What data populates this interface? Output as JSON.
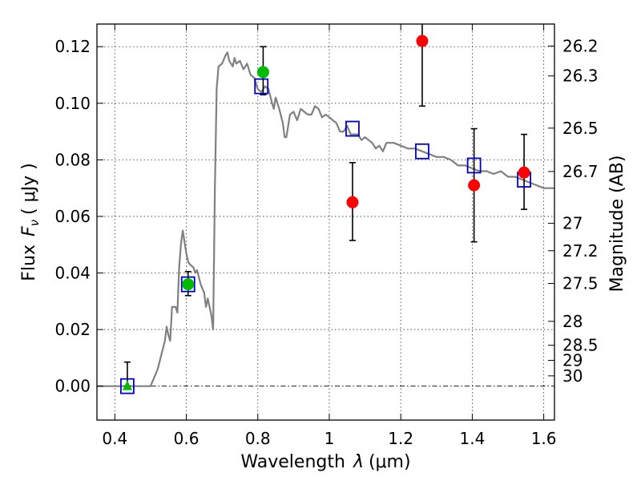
{
  "chart_data": {
    "type": "scatter",
    "xlabel_prefix": "Wavelength",
    "xlabel_symbol": "λ",
    "xlabel_unit": "(μm)",
    "ylabel_prefix": "Flux",
    "ylabel_symbol": "F",
    "ylabel_subscript": "ν",
    "ylabel_unit": "( μJy )",
    "y2label": "Magnitude (AB)",
    "xlim": [
      0.35,
      1.63
    ],
    "ylim": [
      -0.012,
      0.128
    ],
    "xticks": [
      0.4,
      0.6,
      0.8,
      1.0,
      1.2,
      1.4,
      1.6
    ],
    "xtick_labels": [
      "0.4",
      "0.6",
      "0.8",
      "1",
      "1.2",
      "1.4",
      "1.6"
    ],
    "yticks": [
      0.0,
      0.02,
      0.04,
      0.06,
      0.08,
      0.1,
      0.12
    ],
    "ytick_labels": [
      "0.00",
      "0.02",
      "0.04",
      "0.06",
      "0.08",
      "0.10",
      "0.12"
    ],
    "magnitude_ticks": [
      "26.2",
      "26.3",
      "26.5",
      "26.7",
      "27",
      "27.2",
      "27.5",
      "28",
      "28.5",
      "29",
      "30"
    ],
    "grid": true,
    "colors": {
      "model": "#808080",
      "red_points": "#ff0000",
      "green_points": "#00bb00",
      "model_boxes": "#0000cc",
      "errorbar": "#000000"
    },
    "model_spectrum": [
      [
        0.35,
        0.0
      ],
      [
        0.5,
        0.0
      ],
      [
        0.52,
        0.006
      ],
      [
        0.54,
        0.016
      ],
      [
        0.545,
        0.021
      ],
      [
        0.55,
        0.018
      ],
      [
        0.555,
        0.016
      ],
      [
        0.56,
        0.028
      ],
      [
        0.57,
        0.028
      ],
      [
        0.575,
        0.026
      ],
      [
        0.58,
        0.042
      ],
      [
        0.585,
        0.05
      ],
      [
        0.59,
        0.055
      ],
      [
        0.6,
        0.047
      ],
      [
        0.605,
        0.044
      ],
      [
        0.61,
        0.043
      ],
      [
        0.62,
        0.042
      ],
      [
        0.625,
        0.04
      ],
      [
        0.63,
        0.041
      ],
      [
        0.64,
        0.036
      ],
      [
        0.65,
        0.033
      ],
      [
        0.655,
        0.028
      ],
      [
        0.66,
        0.031
      ],
      [
        0.67,
        0.025
      ],
      [
        0.675,
        0.02
      ],
      [
        0.68,
        0.07
      ],
      [
        0.685,
        0.105
      ],
      [
        0.69,
        0.113
      ],
      [
        0.7,
        0.114
      ],
      [
        0.71,
        0.117
      ],
      [
        0.715,
        0.118
      ],
      [
        0.72,
        0.115
      ],
      [
        0.73,
        0.113
      ],
      [
        0.735,
        0.116
      ],
      [
        0.74,
        0.114
      ],
      [
        0.75,
        0.115
      ],
      [
        0.76,
        0.112
      ],
      [
        0.77,
        0.114
      ],
      [
        0.78,
        0.11
      ],
      [
        0.79,
        0.109
      ],
      [
        0.8,
        0.105
      ],
      [
        0.81,
        0.104
      ],
      [
        0.82,
        0.106
      ],
      [
        0.83,
        0.105
      ],
      [
        0.84,
        0.1
      ],
      [
        0.845,
        0.098
      ],
      [
        0.85,
        0.102
      ],
      [
        0.86,
        0.098
      ],
      [
        0.87,
        0.093
      ],
      [
        0.875,
        0.088
      ],
      [
        0.88,
        0.088
      ],
      [
        0.89,
        0.096
      ],
      [
        0.9,
        0.097
      ],
      [
        0.91,
        0.094
      ],
      [
        0.92,
        0.098
      ],
      [
        0.93,
        0.097
      ],
      [
        0.94,
        0.096
      ],
      [
        0.95,
        0.096
      ],
      [
        0.96,
        0.099
      ],
      [
        0.97,
        0.098
      ],
      [
        0.98,
        0.095
      ],
      [
        0.99,
        0.096
      ],
      [
        1.0,
        0.095
      ],
      [
        1.01,
        0.094
      ],
      [
        1.02,
        0.093
      ],
      [
        1.03,
        0.09
      ],
      [
        1.04,
        0.09
      ],
      [
        1.05,
        0.092
      ],
      [
        1.06,
        0.089
      ],
      [
        1.08,
        0.089
      ],
      [
        1.09,
        0.087
      ],
      [
        1.1,
        0.088
      ],
      [
        1.12,
        0.086
      ],
      [
        1.13,
        0.084
      ],
      [
        1.14,
        0.085
      ],
      [
        1.15,
        0.083
      ],
      [
        1.16,
        0.086
      ],
      [
        1.18,
        0.086
      ],
      [
        1.2,
        0.085
      ],
      [
        1.22,
        0.084
      ],
      [
        1.24,
        0.084
      ],
      [
        1.26,
        0.083
      ],
      [
        1.28,
        0.082
      ],
      [
        1.3,
        0.081
      ],
      [
        1.32,
        0.081
      ],
      [
        1.34,
        0.08
      ],
      [
        1.36,
        0.078
      ],
      [
        1.38,
        0.078
      ],
      [
        1.4,
        0.077
      ],
      [
        1.42,
        0.076
      ],
      [
        1.44,
        0.076
      ],
      [
        1.46,
        0.075
      ],
      [
        1.48,
        0.076
      ],
      [
        1.5,
        0.074
      ],
      [
        1.52,
        0.074
      ],
      [
        1.54,
        0.073
      ],
      [
        1.56,
        0.072
      ],
      [
        1.58,
        0.071
      ],
      [
        1.6,
        0.07
      ],
      [
        1.63,
        0.07
      ]
    ],
    "red_points": [
      {
        "x": 1.065,
        "y": 0.065,
        "err_low": 0.0515,
        "err_high": 0.079
      },
      {
        "x": 1.26,
        "y": 0.122,
        "err_low": 0.099,
        "err_high": 0.129
      },
      {
        "x": 1.405,
        "y": 0.071,
        "err_low": 0.051,
        "err_high": 0.091
      },
      {
        "x": 1.545,
        "y": 0.0755,
        "err_low": 0.0625,
        "err_high": 0.089
      }
    ],
    "green_points": [
      {
        "x": 0.435,
        "y": 0.0,
        "marker": "triangle",
        "err_low": 0.0,
        "err_high": 0.0085
      },
      {
        "x": 0.605,
        "y": 0.036,
        "marker": "circle",
        "err_low": 0.032,
        "err_high": 0.0405
      },
      {
        "x": 0.815,
        "y": 0.111,
        "marker": "circle",
        "err_low": 0.103,
        "err_high": 0.12
      }
    ],
    "model_boxes": [
      {
        "x": 0.435,
        "y": 0.0
      },
      {
        "x": 0.605,
        "y": 0.036
      },
      {
        "x": 0.81,
        "y": 0.106
      },
      {
        "x": 1.065,
        "y": 0.091
      },
      {
        "x": 1.26,
        "y": 0.083
      },
      {
        "x": 1.405,
        "y": 0.078
      },
      {
        "x": 1.545,
        "y": 0.073
      }
    ]
  }
}
